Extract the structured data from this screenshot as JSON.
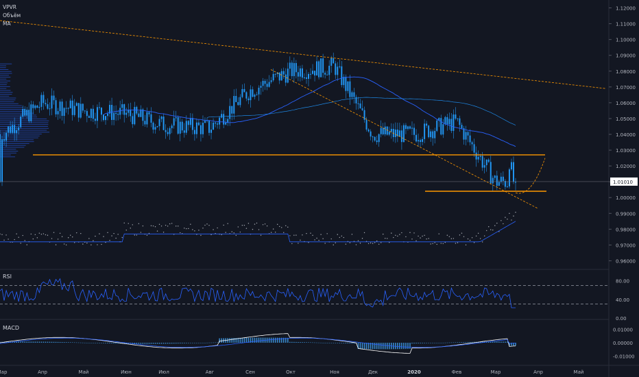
{
  "indicators": [
    "VPVR",
    "Объём",
    "MA"
  ],
  "price_pane": {
    "y_ticks": [
      "1.12000",
      "1.11000",
      "1.10000",
      "1.09000",
      "1.08000",
      "1.07000",
      "1.06000",
      "1.05000",
      "1.04000",
      "1.03000",
      "1.02000",
      "1.01000",
      "1.00000",
      "0.99000",
      "0.98000",
      "0.97000",
      "0.96000"
    ],
    "current_price": "1.01010"
  },
  "rsi_pane": {
    "title": "RSI",
    "y_ticks": [
      "80.00",
      "40.00",
      "0.00"
    ]
  },
  "macd_pane": {
    "title": "MACD",
    "y_ticks": [
      "0.01000",
      "0.00000",
      "-0.01000"
    ]
  },
  "x_axis": {
    "ticks": [
      "Мар",
      "Апр",
      "Май",
      "Июн",
      "Июл",
      "Авг",
      "Сен",
      "Окт",
      "Ноя",
      "Дек",
      "2020",
      "Фев",
      "Мар",
      "Апр",
      "Май"
    ]
  },
  "colors": {
    "background": "#131722",
    "candle": "#2196f3",
    "ma": "#2962ff",
    "support": "#ff9800",
    "trend": "#ff9800",
    "text": "#b2b5be",
    "current_price_bg": "#ffffff"
  },
  "chart_data": {
    "type": "candlestick",
    "x": [
      "2019-03",
      "2019-04",
      "2019-05",
      "2019-06",
      "2019-07",
      "2019-08",
      "2019-09",
      "2019-10",
      "2019-11",
      "2019-12",
      "2020-01",
      "2020-02",
      "2020-03"
    ],
    "close": [
      1.04,
      1.06,
      1.055,
      1.053,
      1.046,
      1.044,
      1.068,
      1.08,
      1.083,
      1.04,
      1.04,
      1.048,
      1.01
    ],
    "ylim": [
      0.955,
      1.125
    ],
    "current_price": 1.0101,
    "support_levels": [
      1.027,
      1.004
    ],
    "rsi": {
      "ylim": [
        0,
        100
      ],
      "levels": [
        70,
        30
      ]
    },
    "macd": {
      "ylim": [
        -0.016,
        0.016
      ]
    }
  }
}
